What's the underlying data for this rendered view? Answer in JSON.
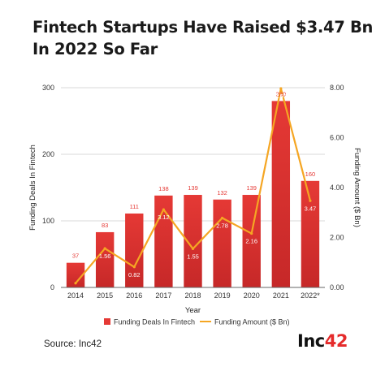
{
  "title": "Fintech Startups Have Raised $3.47 Bn In 2022 So Far",
  "source": "Source: Inc42",
  "brand": {
    "text": "Inc",
    "accent": "42"
  },
  "colors": {
    "bar": "#e53935",
    "bar_dark": "#b71c1c",
    "line": "#f5a623",
    "grid": "#d9d9d9"
  },
  "chart_data": {
    "type": "bar",
    "categories": [
      "2014",
      "2015",
      "2016",
      "2017",
      "2018",
      "2019",
      "2020",
      "2021",
      "2022*"
    ],
    "series": [
      {
        "name": "Funding Deals In Fintech",
        "type": "bar",
        "axis": "left",
        "values": [
          37,
          83,
          111,
          138,
          139,
          132,
          139,
          280,
          160
        ],
        "labels": [
          "37",
          "83",
          "111",
          "138",
          "139",
          "132",
          "139",
          "280",
          "160"
        ]
      },
      {
        "name": "Funding Amount ($ Bn)",
        "type": "line",
        "axis": "right",
        "values": [
          0.17,
          1.56,
          0.82,
          3.12,
          1.55,
          2.78,
          2.16,
          7.97,
          3.47
        ],
        "labels": [
          "0.17",
          "1.56",
          "0.82",
          "3.12",
          "1.55",
          "2.78",
          "2.16",
          "7.97",
          "3.47"
        ]
      }
    ],
    "xlabel": "Year",
    "ylabel": "Funding Deals In Fintech",
    "y2label": "Funding Amount ($ Bn)",
    "ylim": [
      0,
      300
    ],
    "y2lim": [
      0,
      8
    ],
    "yticks": [
      "0",
      "100",
      "200",
      "300"
    ],
    "y2ticks": [
      "0.00",
      "2.00",
      "4.00",
      "6.00",
      "8.00"
    ],
    "grid": true,
    "legend_position": "bottom"
  }
}
